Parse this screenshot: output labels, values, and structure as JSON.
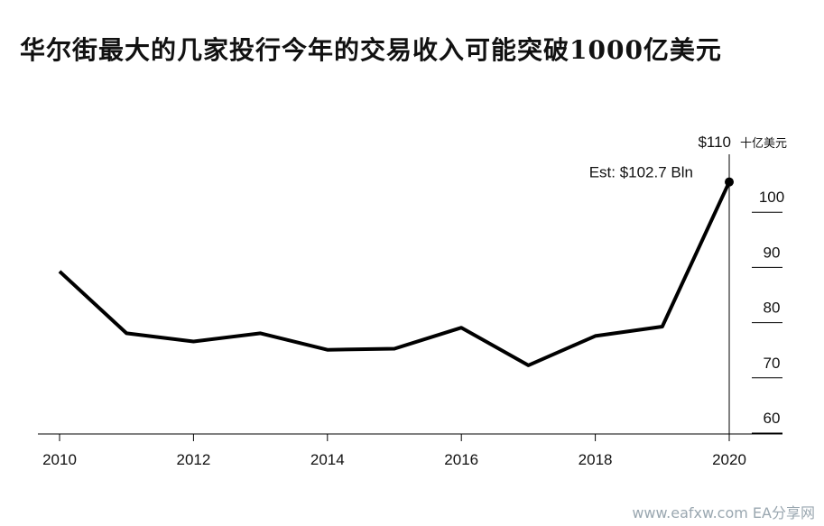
{
  "title": "华尔街最大的几家投行今年的交易收入可能突破1000亿美元",
  "watermark": "www.eafxw.com EA分享网",
  "chart_data": {
    "type": "line",
    "title": "华尔街最大的几家投行今年的交易收入可能突破1000亿美元",
    "x": [
      2010,
      2011,
      2012,
      2013,
      2014,
      2015,
      2016,
      2017,
      2018,
      2019,
      2020
    ],
    "values": [
      86.5,
      75.3,
      73.8,
      75.3,
      72.3,
      72.5,
      76.3,
      69.5,
      74.8,
      76.5,
      102.7
    ],
    "xticks": [
      "2010",
      "2012",
      "2014",
      "2016",
      "2018",
      "2020"
    ],
    "yticks": [
      "$110",
      "100",
      "90",
      "80",
      "70",
      "60"
    ],
    "unit_label": "十亿美元",
    "xlim": [
      2010,
      2020
    ],
    "ylim": [
      60,
      110
    ],
    "annotation": {
      "text": "Est: $102.7 Bln",
      "x": 2020,
      "y": 102.7
    },
    "grid": false,
    "line_color": "#000000"
  }
}
